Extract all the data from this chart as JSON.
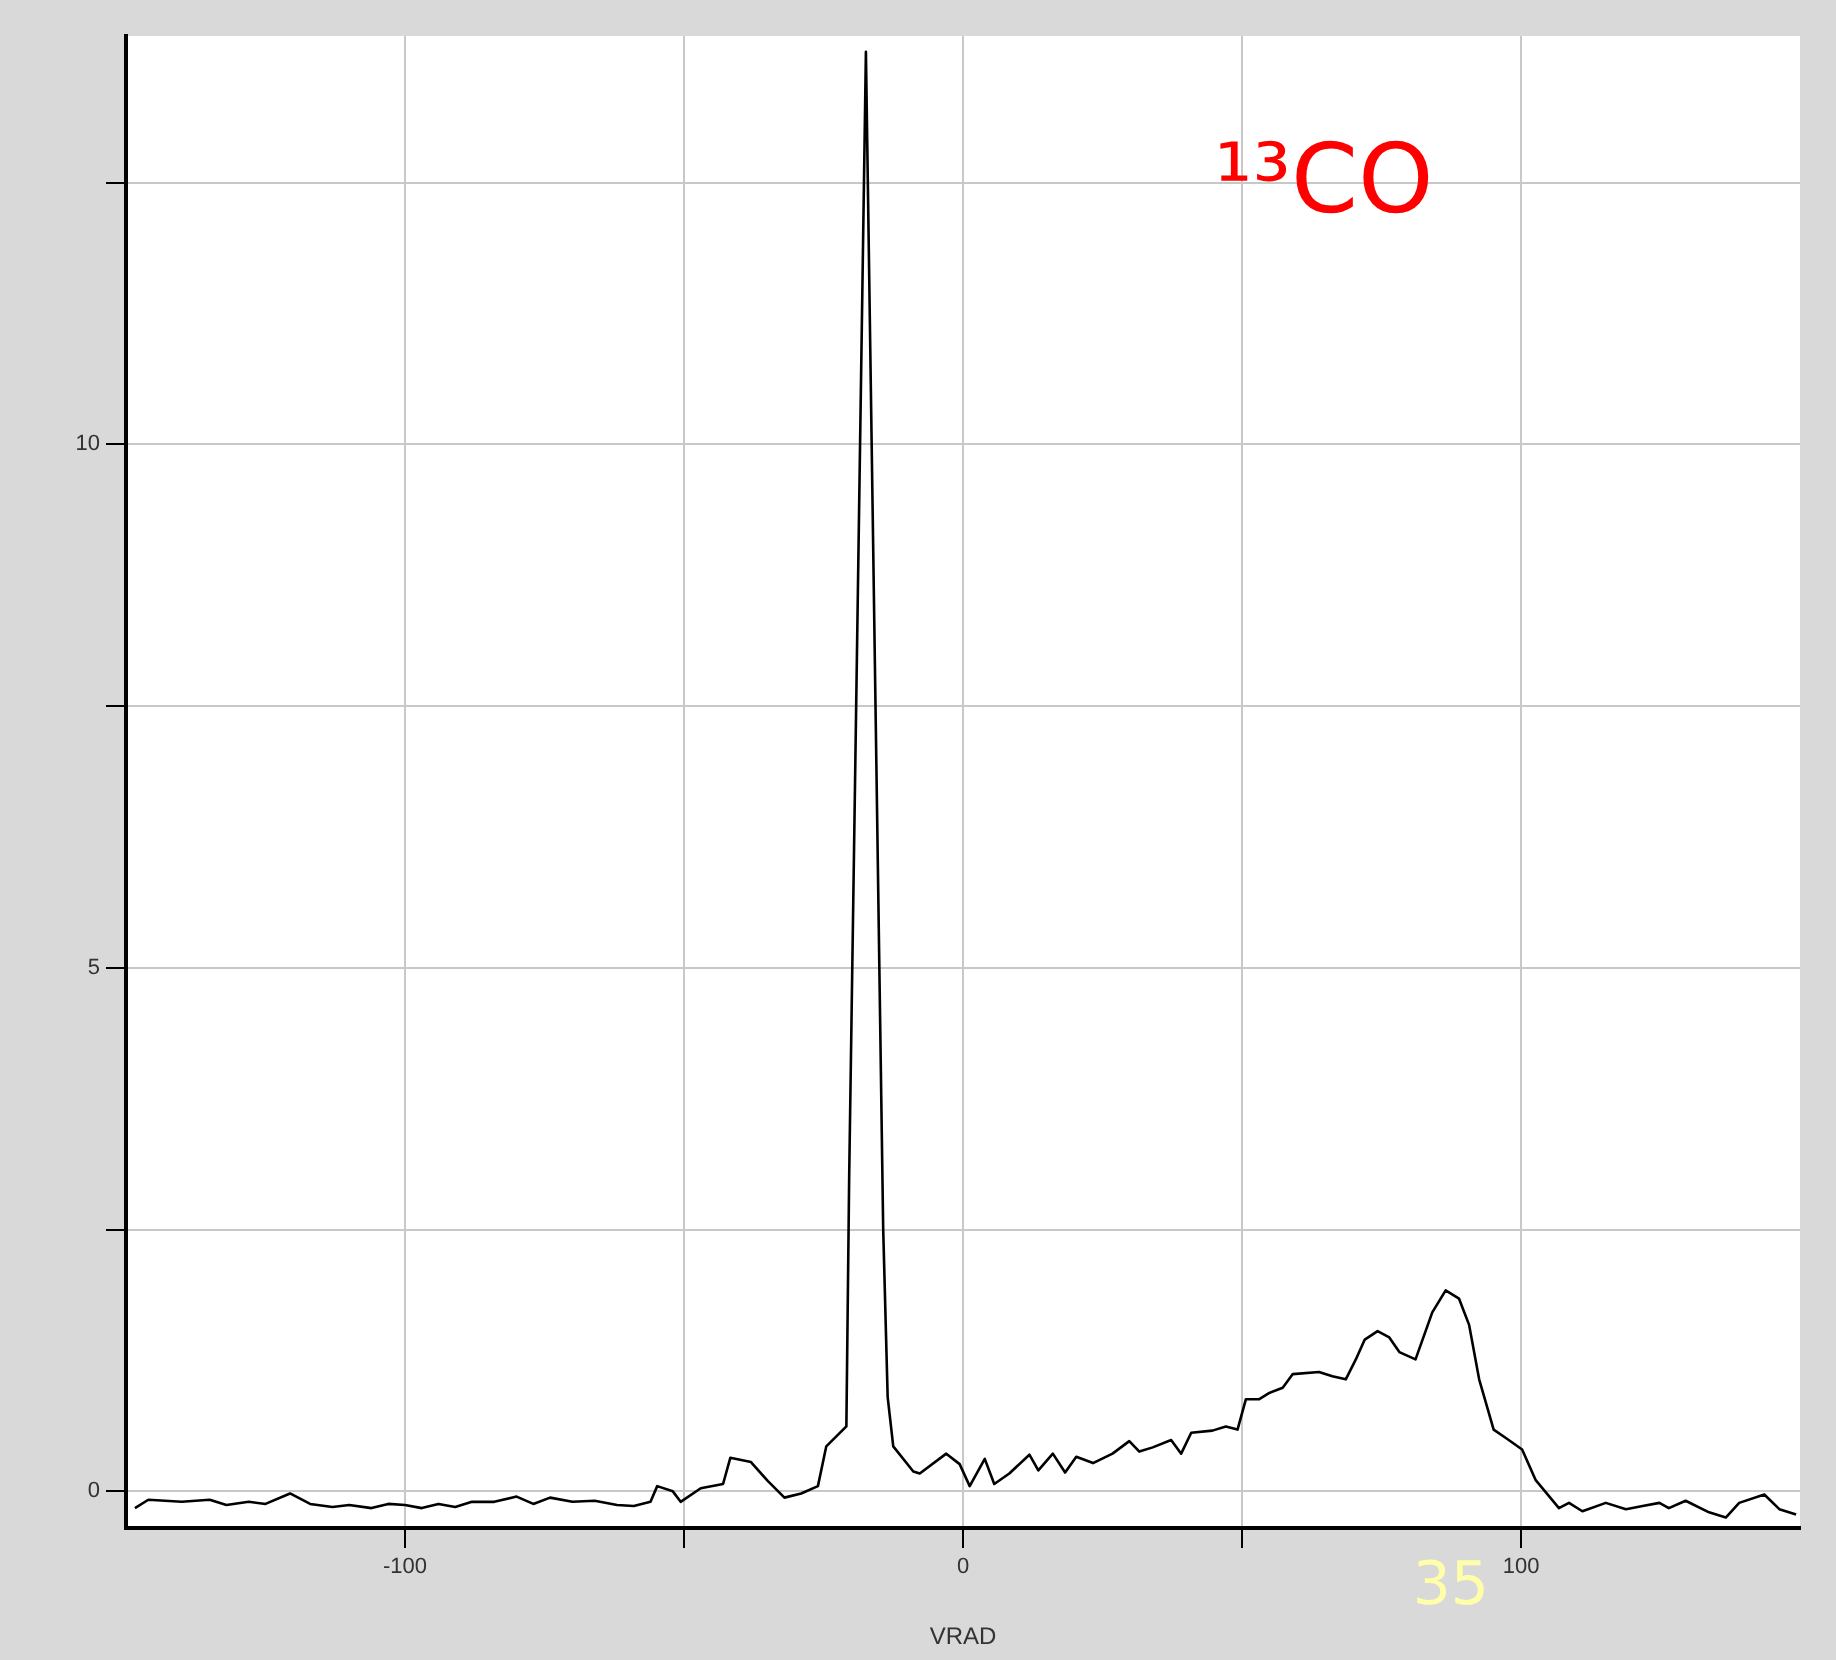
{
  "chart_data": {
    "type": "line",
    "title": "¹³CO",
    "xlabel": "VRAD",
    "annotations": [
      "35"
    ],
    "x": [
      -148.4,
      -146,
      -140,
      -135,
      -132,
      -128,
      -125,
      -120.6,
      -117,
      -113,
      -110,
      -106,
      -103,
      -100,
      -97,
      -94,
      -91,
      -88,
      -84,
      -80,
      -77,
      -74,
      -70,
      -66,
      -62,
      -59,
      -56,
      -54.8,
      -52,
      -50.6,
      -47,
      -43,
      -41.7,
      -38,
      -35,
      -32,
      -29,
      -26,
      -24.5,
      -20.9,
      -20.4,
      -17.4,
      -14.3,
      -13.5,
      -12.5,
      -8.9,
      -7.75,
      -3,
      -0.6,
      1.2,
      3.9,
      5.6,
      8.3,
      11.9,
      13.5,
      16.1,
      18.3,
      20.3,
      23.3,
      26.8,
      29.8,
      31.6,
      34,
      37.3,
      39.1,
      40.9,
      44.7,
      47.1,
      49.2,
      50.7,
      53.1,
      54.9,
      57.3,
      59.1,
      63.8,
      66.2,
      68.6,
      70.4,
      72,
      74.3,
      76.4,
      78.2,
      81.1,
      84.1,
      86.5,
      88.9,
      90.7,
      92.5,
      95.1,
      97.8,
      100.2,
      102.6,
      106.8,
      108.6,
      111,
      115.2,
      118.8,
      121.8,
      124.8,
      126.5,
      129.5,
      133.7,
      136.7,
      139.1,
      143.6,
      146.3,
      149.3
    ],
    "series": [
      {
        "color": "#000000",
        "values": [
          -0.16,
          -0.08,
          -0.1,
          -0.08,
          -0.13,
          -0.1,
          -0.12,
          -0.02,
          -0.12,
          -0.15,
          -0.13,
          -0.16,
          -0.12,
          -0.13,
          -0.16,
          -0.12,
          -0.15,
          -0.1,
          -0.1,
          -0.05,
          -0.12,
          -0.06,
          -0.1,
          -0.09,
          -0.13,
          -0.14,
          -0.1,
          0.05,
          0,
          -0.1,
          0.03,
          0.07,
          0.32,
          0.28,
          0.1,
          -0.06,
          -0.02,
          0.05,
          0.43,
          0.62,
          3,
          13.75,
          2.5,
          0.9,
          0.43,
          0.19,
          0.17,
          0.36,
          0.26,
          0.05,
          0.31,
          0.07,
          0.17,
          0.35,
          0.2,
          0.36,
          0.18,
          0.33,
          0.27,
          0.36,
          0.48,
          0.38,
          0.42,
          0.49,
          0.36,
          0.56,
          0.58,
          0.62,
          0.59,
          0.88,
          0.88,
          0.94,
          0.99,
          1.12,
          1.14,
          1.1,
          1.07,
          1.26,
          1.45,
          1.53,
          1.47,
          1.33,
          1.26,
          1.71,
          1.92,
          1.84,
          1.59,
          1.07,
          0.59,
          0.49,
          0.4,
          0.11,
          -0.16,
          -0.11,
          -0.19,
          -0.11,
          -0.17,
          -0.14,
          -0.11,
          -0.16,
          -0.09,
          -0.2,
          -0.25,
          -0.11,
          -0.03,
          -0.17,
          -0.22
        ]
      }
    ],
    "xlim": [
      -150,
      150
    ],
    "xticks": [
      -100,
      {
        "value": -50,
        "label": null
      },
      0,
      {
        "value": 50,
        "label": null
      },
      100
    ],
    "ylim": [
      -0.35,
      13.9
    ],
    "yticks": [
      0,
      {
        "value": 2.5,
        "label": null
      },
      5,
      {
        "value": 7.5,
        "label": null
      },
      10,
      {
        "value": 12.5,
        "label": null
      }
    ],
    "grid": true,
    "legend": false,
    "marker": "none",
    "line_style": "solid"
  }
}
